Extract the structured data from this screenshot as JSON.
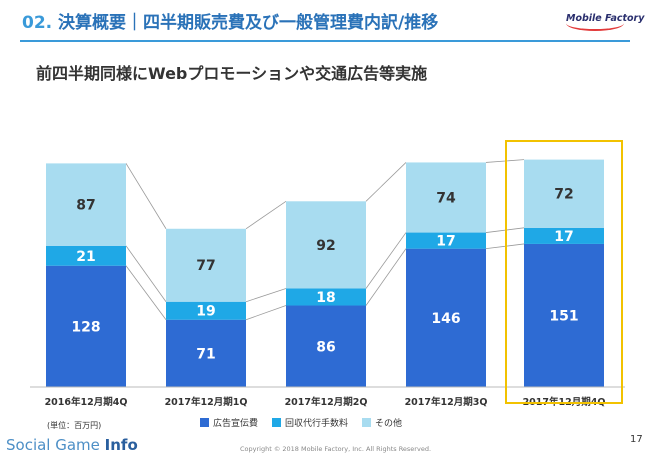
{
  "header": {
    "number": "02.",
    "title": "決算概要｜四半期販売費及び一般管理費内訳/推移",
    "logo_text": "Mobile Factory"
  },
  "subtitle": "前四半期同様にWebプロモーションや交通広告等実施",
  "unit_label": "(単位：百万円)",
  "legend": [
    {
      "label": "広告宣伝費",
      "color": "#2e6bd3"
    },
    {
      "label": "回収代行手数料",
      "color": "#1fa8e6"
    },
    {
      "label": "その他",
      "color": "#a8dcf0"
    }
  ],
  "chart_data": {
    "type": "bar",
    "stacked": true,
    "categories": [
      "2016年12月期4Q",
      "2017年12月期1Q",
      "2017年12月期2Q",
      "2017年12月期3Q",
      "2017年12月期4Q"
    ],
    "series": [
      {
        "name": "広告宣伝費",
        "color": "#2e6bd3",
        "values": [
          128,
          71,
          86,
          146,
          151
        ]
      },
      {
        "name": "回収代行手数料",
        "color": "#1fa8e6",
        "values": [
          21,
          19,
          18,
          17,
          17
        ]
      },
      {
        "name": "その他",
        "color": "#a8dcf0",
        "values": [
          87,
          77,
          92,
          74,
          72
        ]
      }
    ],
    "highlighted_category": "2017年12月期4Q"
  },
  "footer": {
    "brand_main": "Social Game ",
    "brand_bold": "Info",
    "copyright": "Copyright © 2018 Mobile Factory, Inc. All Rights Reserved.",
    "page": "17"
  }
}
